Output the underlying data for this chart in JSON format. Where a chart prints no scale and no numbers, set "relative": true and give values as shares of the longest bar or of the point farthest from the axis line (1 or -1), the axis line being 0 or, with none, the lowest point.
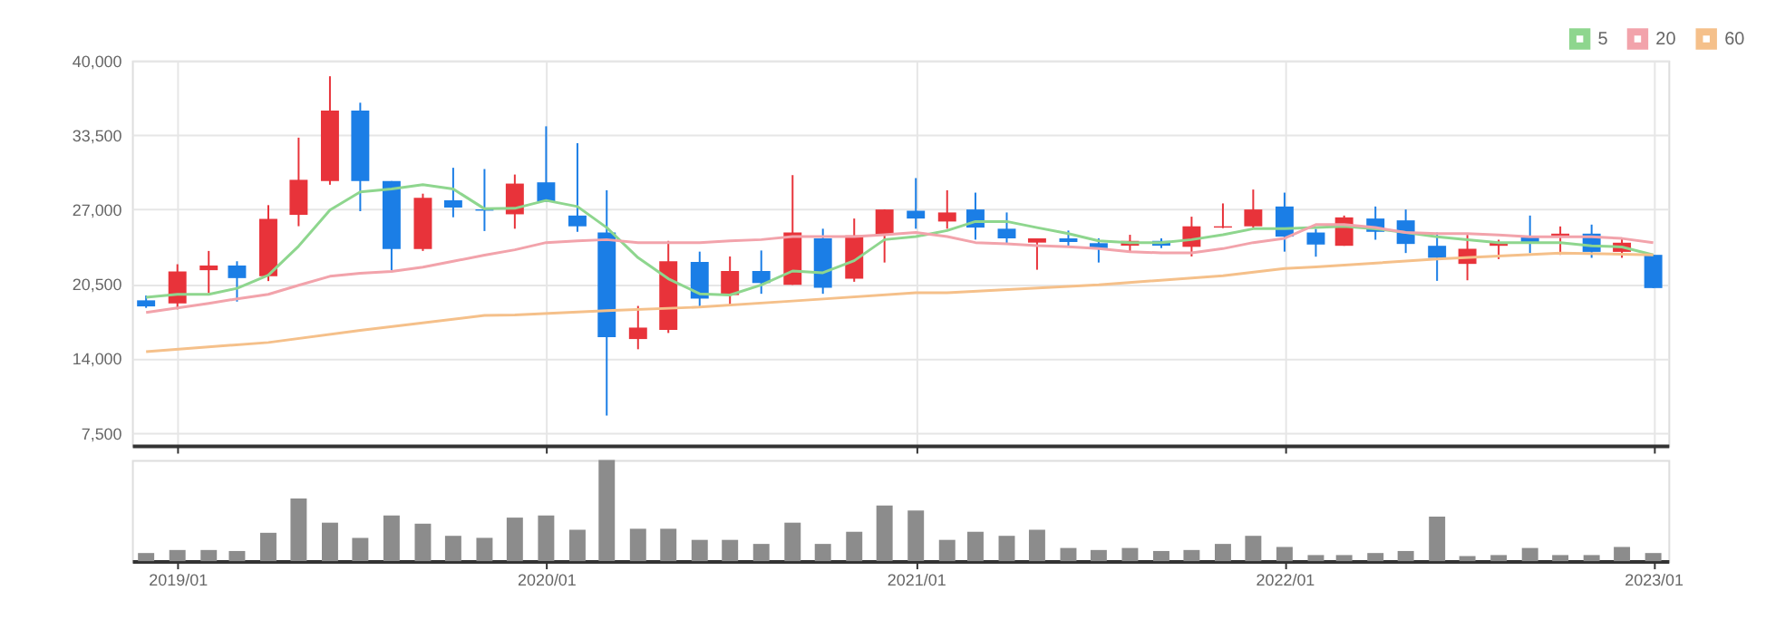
{
  "chart_data": [
    {
      "type": "candlestick",
      "x": [
        "2018-12",
        "2019-01",
        "2019-02",
        "2019-03",
        "2019-04",
        "2019-05",
        "2019-06",
        "2019-07",
        "2019-08",
        "2019-09",
        "2019-10",
        "2019-11",
        "2019-12",
        "2020-01",
        "2020-02",
        "2020-03",
        "2020-04",
        "2020-05",
        "2020-06",
        "2020-07",
        "2020-08",
        "2020-09",
        "2020-10",
        "2020-11",
        "2020-12",
        "2021-01",
        "2021-02",
        "2021-03",
        "2021-04",
        "2021-05",
        "2021-06",
        "2021-07",
        "2021-08",
        "2021-09",
        "2021-10",
        "2021-11",
        "2021-12",
        "2022-01",
        "2022-02",
        "2022-03",
        "2022-04",
        "2022-05",
        "2022-06",
        "2022-07",
        "2022-08",
        "2022-09",
        "2022-10",
        "2022-11",
        "2022-12",
        "2023-01"
      ],
      "ohlc": [
        [
          19070,
          19490,
          18410,
          18540
        ],
        [
          18800,
          22220,
          18280,
          21590
        ],
        [
          21700,
          23380,
          19700,
          22110
        ],
        [
          22110,
          22480,
          18960,
          21010
        ],
        [
          21170,
          27380,
          20750,
          26170
        ],
        [
          26530,
          33270,
          25540,
          29590
        ],
        [
          29480,
          38630,
          29160,
          35630
        ],
        [
          35630,
          36320,
          26850,
          29480
        ],
        [
          29480,
          29480,
          21700,
          23540
        ],
        [
          23540,
          28380,
          23380,
          28010
        ],
        [
          27800,
          30640,
          26320,
          27170
        ],
        [
          27010,
          30530,
          25120,
          26900
        ],
        [
          26580,
          30050,
          25320,
          29260
        ],
        [
          29370,
          34260,
          27680,
          27680
        ],
        [
          26470,
          32790,
          25050,
          25530
        ],
        [
          25000,
          28680,
          9010,
          15850
        ],
        [
          15690,
          18580,
          14800,
          16690
        ],
        [
          16480,
          24260,
          16220,
          22480
        ],
        [
          22420,
          23320,
          18430,
          19220
        ],
        [
          19530,
          22900,
          18690,
          21630
        ],
        [
          21630,
          23420,
          19640,
          20580
        ],
        [
          20420,
          30000,
          20420,
          25000
        ],
        [
          24480,
          25320,
          19640,
          20160
        ],
        [
          20950,
          26210,
          20690,
          24740
        ],
        [
          24790,
          27000,
          22370,
          27000
        ],
        [
          26890,
          29740,
          25320,
          26210
        ],
        [
          25950,
          28680,
          25320,
          26740
        ],
        [
          27000,
          28470,
          24370,
          25420
        ],
        [
          25320,
          26740,
          23950,
          24480
        ],
        [
          24110,
          24480,
          21740,
          24480
        ],
        [
          24480,
          25160,
          23740,
          24160
        ],
        [
          24060,
          24480,
          22370,
          23630
        ],
        [
          23840,
          24790,
          23320,
          24260
        ],
        [
          24260,
          24480,
          23630,
          23840
        ],
        [
          23740,
          26370,
          22900,
          25530
        ],
        [
          25420,
          27530,
          25370,
          25530
        ],
        [
          25530,
          28740,
          25420,
          27000
        ],
        [
          27260,
          28470,
          23320,
          24630
        ],
        [
          24990,
          25310,
          22880,
          23940
        ],
        [
          23830,
          26470,
          23830,
          26310
        ],
        [
          26210,
          27260,
          24360,
          25050
        ],
        [
          26050,
          27000,
          23200,
          23990
        ],
        [
          23830,
          24990,
          20770,
          22780
        ],
        [
          22250,
          24780,
          20820,
          23570
        ],
        [
          23830,
          24360,
          22670,
          24150
        ],
        [
          24570,
          26470,
          23200,
          24040
        ],
        [
          24570,
          25520,
          23040,
          24890
        ],
        [
          24890,
          25680,
          22780,
          23300
        ],
        [
          23300,
          24470,
          22780,
          24100
        ],
        [
          23040,
          23040,
          20140,
          20140
        ]
      ],
      "colors": [
        "#1b7ee6",
        "#e8333a",
        "#e8333a",
        "#1b7ee6",
        "#e8333a",
        "#e8333a",
        "#e8333a",
        "#1b7ee6",
        "#1b7ee6",
        "#e8333a",
        "#1b7ee6",
        "#1b7ee6",
        "#e8333a",
        "#1b7ee6",
        "#1b7ee6",
        "#1b7ee6",
        "#e8333a",
        "#e8333a",
        "#1b7ee6",
        "#e8333a",
        "#1b7ee6",
        "#e8333a",
        "#1b7ee6",
        "#e8333a",
        "#e8333a",
        "#1b7ee6",
        "#e8333a",
        "#1b7ee6",
        "#1b7ee6",
        "#e8333a",
        "#1b7ee6",
        "#1b7ee6",
        "#e8333a",
        "#1b7ee6",
        "#e8333a",
        "#e8333a",
        "#e8333a",
        "#1b7ee6",
        "#1b7ee6",
        "#e8333a",
        "#1b7ee6",
        "#1b7ee6",
        "#1b7ee6",
        "#e8333a",
        "#e8333a",
        "#1b7ee6",
        "#e8333a",
        "#1b7ee6",
        "#e8333a",
        "#1b7ee6"
      ],
      "series": [
        {
          "name": "5",
          "type": "line",
          "color": "#8ed68e",
          "values": [
            19330,
            19590,
            19590,
            20120,
            21270,
            23800,
            26950,
            28530,
            28790,
            29160,
            28790,
            27060,
            27100,
            27790,
            27260,
            25420,
            22790,
            20950,
            19640,
            19530,
            20420,
            21630,
            21480,
            22530,
            24370,
            24630,
            25160,
            25950,
            25950,
            25420,
            24900,
            24260,
            24110,
            24110,
            24370,
            24790,
            25320,
            25320,
            25420,
            25520,
            25310,
            24990,
            24620,
            24360,
            24100,
            24100,
            24100,
            23830,
            23730,
            23040
          ]
        },
        {
          "name": "20",
          "type": "line",
          "color": "#f2a3ab",
          "values": [
            18010,
            18400,
            18800,
            19200,
            19590,
            20380,
            21170,
            21430,
            21590,
            21960,
            22480,
            23010,
            23480,
            24110,
            24260,
            24370,
            24110,
            24110,
            24110,
            24260,
            24370,
            24630,
            24630,
            24630,
            24790,
            25000,
            24630,
            24110,
            24000,
            23840,
            23740,
            23580,
            23320,
            23210,
            23210,
            23580,
            24110,
            24480,
            25680,
            25680,
            25420,
            24990,
            24890,
            24890,
            24780,
            24620,
            24620,
            24620,
            24470,
            24100
          ]
        },
        {
          "name": "60",
          "type": "line",
          "color": "#f5c08a",
          "x": [
            "2018-12",
            "2019-04",
            "2019-07",
            "2019-11",
            "2019-12",
            "2020-03",
            "2020-06",
            "2020-09",
            "2021-01",
            "2021-02",
            "2021-07",
            "2021-11",
            "2022-01",
            "2022-02",
            "2022-06",
            "2022-10",
            "2023-01"
          ],
          "values": [
            14590,
            15390,
            16440,
            17750,
            17790,
            18160,
            18480,
            19010,
            19740,
            19740,
            20420,
            21220,
            21840,
            21980,
            22670,
            23200,
            23040
          ]
        }
      ],
      "ylim": [
        6400,
        40000
      ],
      "yticks": [
        {
          "value": 7500,
          "label": "7,500"
        },
        {
          "value": 14000,
          "label": "14,000"
        },
        {
          "value": 20500,
          "label": "20,500"
        },
        {
          "value": 27000,
          "label": "27,000"
        },
        {
          "value": 33500,
          "label": "33,500"
        },
        {
          "value": 40000,
          "label": "40,000"
        }
      ],
      "xlim": [
        "2018-11-17",
        "2023-01-16"
      ],
      "xticks": [
        {
          "value": "2019-01",
          "label": null
        },
        {
          "value": "2020-01",
          "label": null
        },
        {
          "value": "2021-01",
          "label": null
        },
        {
          "value": "2022-01",
          "label": null
        },
        {
          "value": "2023-01",
          "label": null
        }
      ],
      "grid": true,
      "legend": "top right",
      "tick_labels": "y"
    },
    {
      "type": "bar",
      "relative": true,
      "color": "#8c8c8c",
      "x": [
        "2018-12",
        "2019-01",
        "2019-02",
        "2019-03",
        "2019-04",
        "2019-05",
        "2019-06",
        "2019-07",
        "2019-08",
        "2019-09",
        "2019-10",
        "2019-11",
        "2019-12",
        "2020-01",
        "2020-02",
        "2020-03",
        "2020-04",
        "2020-05",
        "2020-06",
        "2020-07",
        "2020-08",
        "2020-09",
        "2020-10",
        "2020-11",
        "2020-12",
        "2021-01",
        "2021-02",
        "2021-03",
        "2021-04",
        "2021-05",
        "2021-06",
        "2021-07",
        "2021-08",
        "2021-09",
        "2021-10",
        "2021-11",
        "2021-12",
        "2022-01",
        "2022-02",
        "2022-03",
        "2022-04",
        "2022-05",
        "2022-06",
        "2022-07",
        "2022-08",
        "2022-09",
        "2022-10",
        "2022-11",
        "2022-12",
        "2023-01"
      ],
      "values": [
        0.08,
        0.11,
        0.11,
        0.1,
        0.28,
        0.62,
        0.38,
        0.23,
        0.45,
        0.37,
        0.25,
        0.23,
        0.43,
        0.45,
        0.31,
        1,
        0.32,
        0.32,
        0.21,
        0.21,
        0.17,
        0.38,
        0.17,
        0.29,
        0.55,
        0.5,
        0.21,
        0.29,
        0.25,
        0.31,
        0.13,
        0.11,
        0.13,
        0.1,
        0.11,
        0.17,
        0.25,
        0.14,
        0.06,
        0.06,
        0.08,
        0.1,
        0.44,
        0.05,
        0.06,
        0.13,
        0.06,
        0.06,
        0.14,
        0.08
      ],
      "xlim": [
        "2018-11-17",
        "2023-01-16"
      ],
      "xticks": [
        {
          "value": "2019-01",
          "label": "2019/01"
        },
        {
          "value": "2020-01",
          "label": "2020/01"
        },
        {
          "value": "2021-01",
          "label": "2021/01"
        },
        {
          "value": "2022-01",
          "label": "2022/01"
        },
        {
          "value": "2023-01",
          "label": "2023/01"
        }
      ],
      "grid": false
    }
  ]
}
